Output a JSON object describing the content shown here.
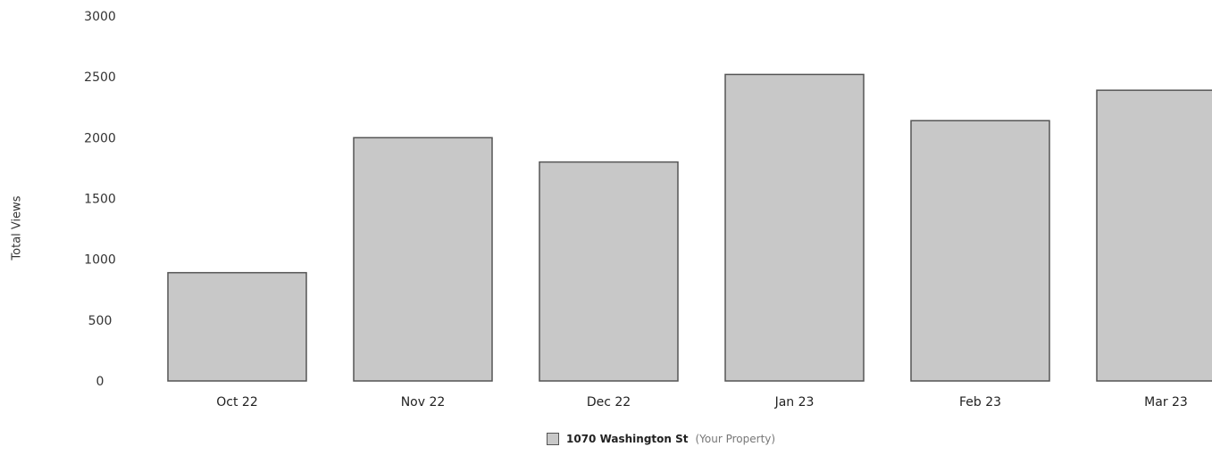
{
  "chart_data": {
    "type": "bar",
    "categories": [
      "Oct 22",
      "Nov 22",
      "Dec 22",
      "Jan 23",
      "Feb 23",
      "Mar 23"
    ],
    "series": [
      {
        "name": "1070 Washington St (Your Property)",
        "values": [
          890,
          2000,
          1800,
          2520,
          2140,
          2390
        ]
      }
    ],
    "ylabel": "Total Views",
    "ylim": [
      0,
      3000
    ],
    "yticks": [
      0,
      500,
      1000,
      1500,
      2000,
      2500,
      3000
    ],
    "grid": false,
    "legend_position": "bottom-center",
    "colors": {
      "bar": "#c8c8c8",
      "bar_edge": "#555555",
      "text": "#222222"
    }
  },
  "legend": {
    "name": "1070 Washington St",
    "suffix": "(Your Property)"
  }
}
